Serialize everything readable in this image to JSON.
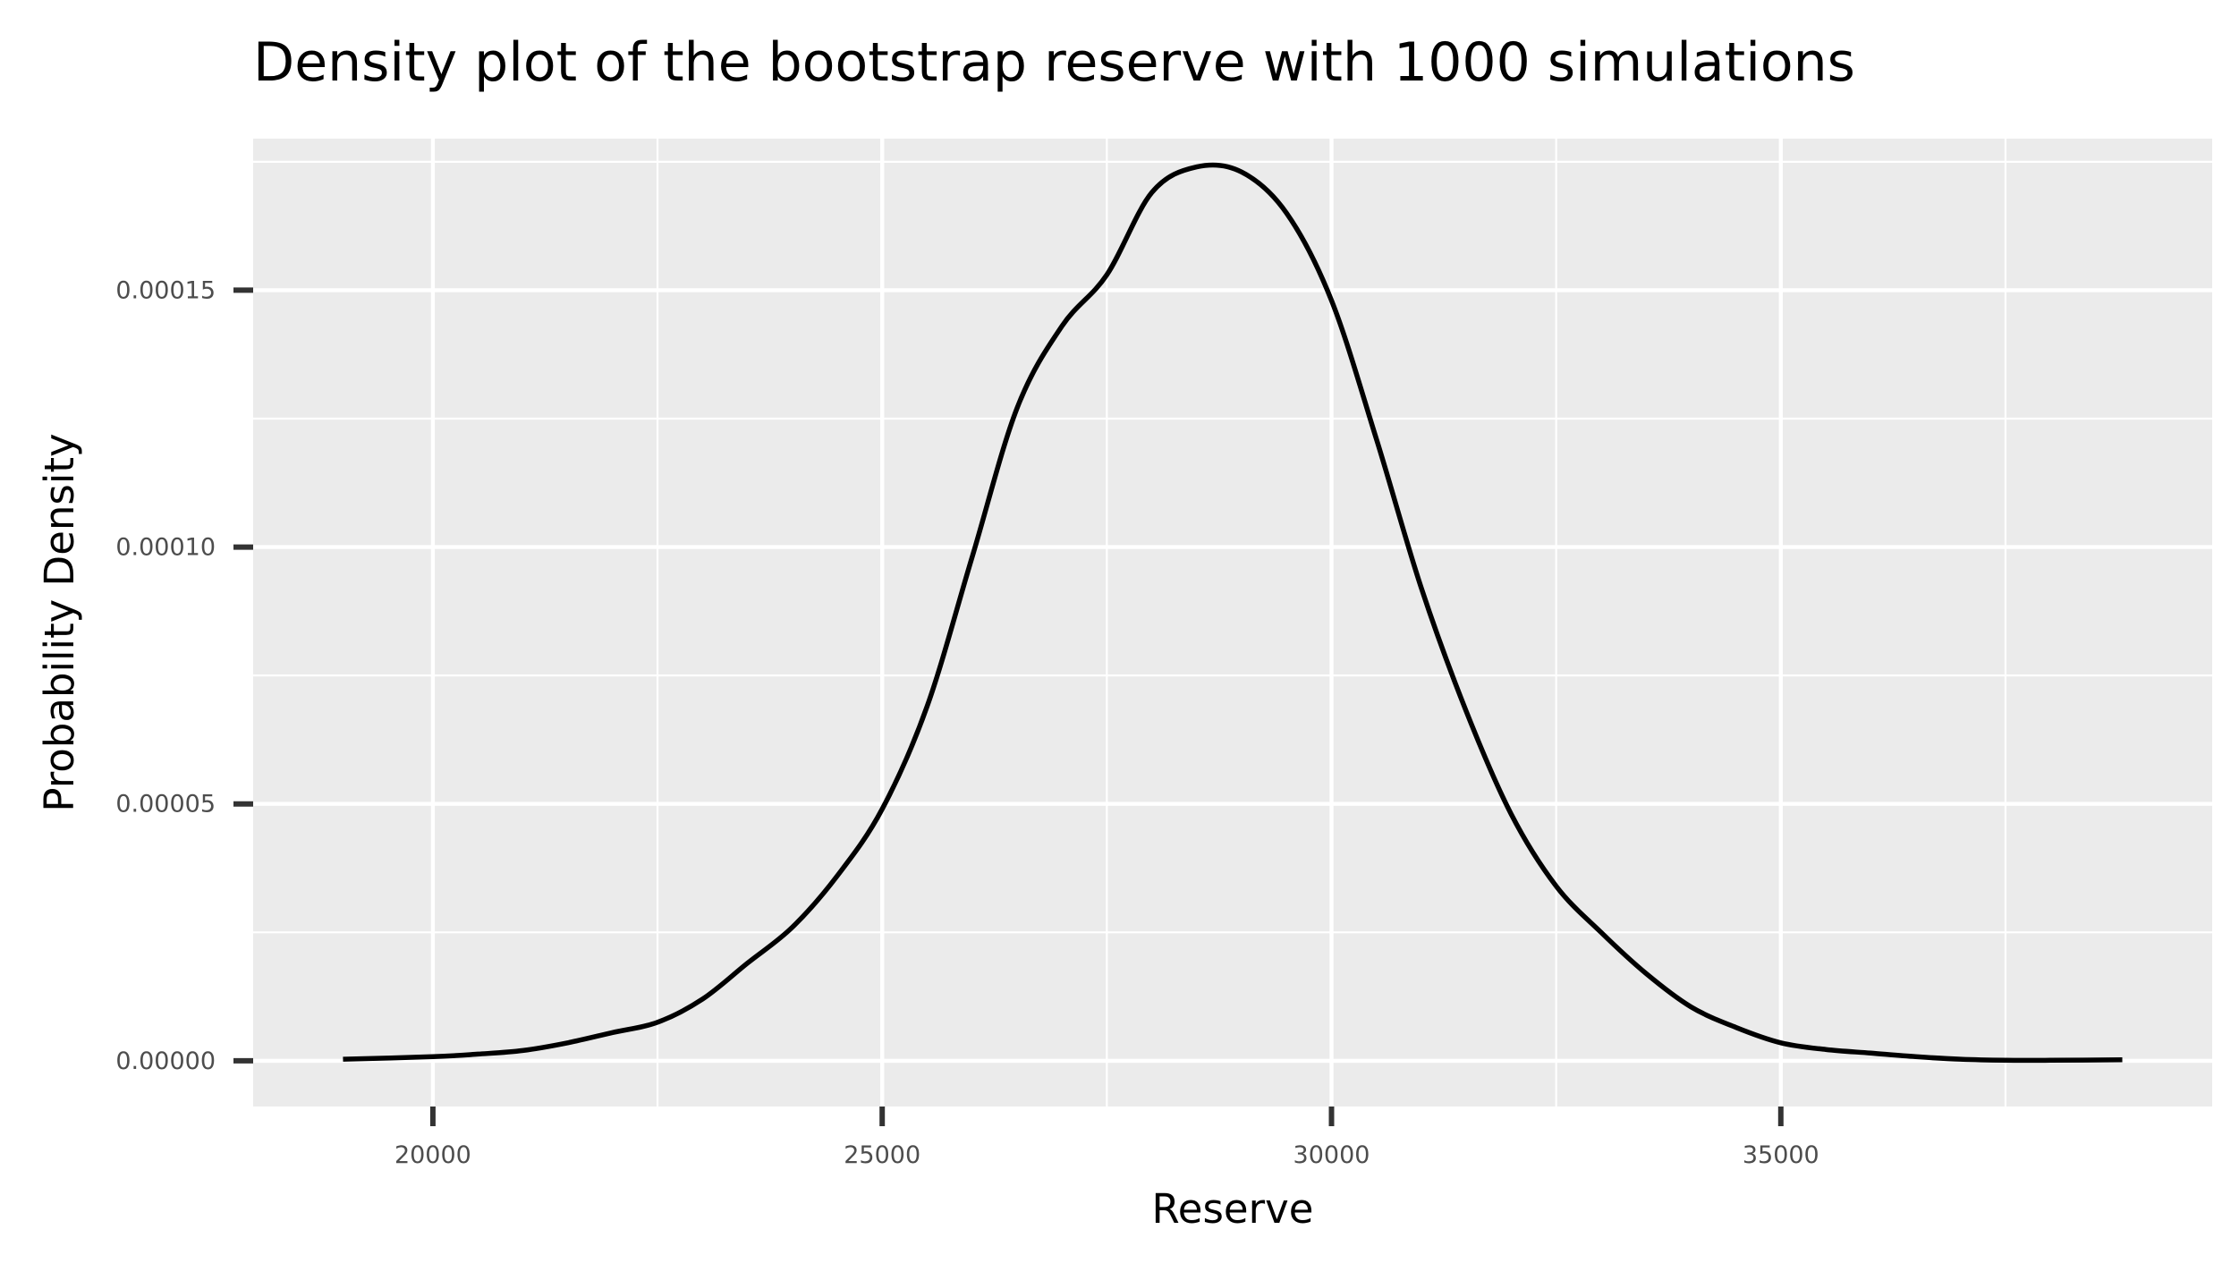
{
  "chart_data": {
    "type": "line",
    "title": "Density plot of the bootstrap reserve with 1000 simulations",
    "xlabel": "Reserve",
    "ylabel": "Probability Density",
    "xlim": [
      18000,
      39800
    ],
    "ylim": [
      -8.9e-06,
      0.0001795
    ],
    "x_ticks": [
      20000,
      25000,
      30000,
      35000
    ],
    "x_tick_labels": [
      "20000",
      "25000",
      "30000",
      "35000"
    ],
    "y_ticks": [
      0.0,
      5e-05,
      0.0001,
      0.00015
    ],
    "y_tick_labels": [
      "0.00000",
      "0.00005",
      "0.00010",
      "0.00015"
    ],
    "x_minor_grid": [
      22500,
      27500,
      32500,
      37500
    ],
    "y_minor_grid": [
      2.5e-05,
      7.5e-05,
      0.000125,
      0.000175
    ],
    "grid": true,
    "legend": "none",
    "background_color": "#ebebeb",
    "grid_color": "#ffffff",
    "line_color": "#000000",
    "series": [
      {
        "x": [
          19000,
          20000,
          20500,
          21000,
          21500,
          22000,
          22500,
          23000,
          23500,
          24000,
          24500,
          25000,
          25500,
          26000,
          26500,
          27000,
          27500,
          28000,
          28500,
          29000,
          29500,
          30000,
          30500,
          31000,
          31500,
          32000,
          32500,
          33000,
          33500,
          34000,
          34500,
          35000,
          35500,
          36000,
          36500,
          37000,
          37500,
          38000,
          38800
        ],
        "y": [
          3e-07,
          8e-07,
          1.3e-06,
          2e-06,
          3.5e-06,
          5.5e-06,
          7.5e-06,
          1.2e-05,
          1.9e-05,
          2.6e-05,
          3.6e-05,
          4.9e-05,
          6.9e-05,
          9.8e-05,
          0.000127,
          0.000143,
          0.000153,
          0.000169,
          0.000174,
          0.000173,
          0.000165,
          0.000148,
          0.000121,
          9.2e-05,
          6.8e-05,
          4.8e-05,
          3.4e-05,
          2.5e-05,
          1.7e-05,
          1.05e-05,
          6.5e-06,
          3.5e-06,
          2.2e-06,
          1.5e-06,
          8e-07,
          3e-07,
          1e-07,
          1e-07,
          2e-07
        ]
      }
    ]
  }
}
